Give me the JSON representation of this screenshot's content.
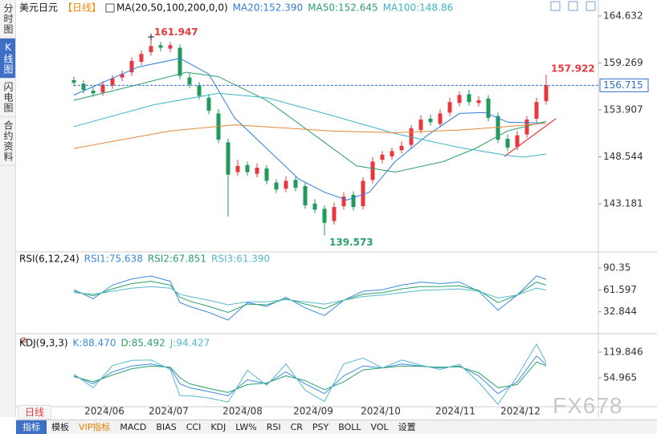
{
  "sidebar": {
    "tabs": [
      "分时图",
      "K线图",
      "闪电图",
      "合约资料"
    ]
  },
  "period_button": "日线",
  "watermark": "FX678",
  "toolbar": {
    "items": [
      "指标",
      "模板",
      "VIP指标",
      "MACD",
      "BIAS",
      "CCI",
      "KDJ",
      "LW%",
      "RSI",
      "CR",
      "PSY",
      "BOLL",
      "VOL",
      "设置"
    ]
  },
  "chart_data": [
    {
      "type": "candlestick",
      "title": "美元日元",
      "period": "【日线】",
      "indicator": "MA(20,50,100,200,0,0)",
      "xlim": [
        -17.5,
        163.25
      ],
      "ylim": [
        137.86,
        165.18
      ],
      "yticks": [
        164.632,
        159.269,
        153.907,
        148.544,
        143.181
      ],
      "xticks": [
        {
          "value": 9.5,
          "label": "2024/06"
        },
        {
          "value": 29.5,
          "label": "2024/07"
        },
        {
          "value": 52.5,
          "label": "2024/08"
        },
        {
          "value": 74.5,
          "label": "2024/09"
        },
        {
          "value": 95.5,
          "label": "2024/10"
        },
        {
          "value": 118.75,
          "label": "2024/11"
        },
        {
          "value": 139,
          "label": "2024/12"
        }
      ],
      "up_color": "#e8383d",
      "down_color": "#1f9a5a",
      "candles": {
        "x": [
          0,
          3,
          6,
          9,
          12,
          15,
          18,
          21,
          24,
          27,
          30,
          33,
          36,
          39,
          42,
          45,
          48,
          51,
          54,
          57,
          60,
          63,
          66,
          69,
          72,
          75,
          78,
          81,
          84,
          87,
          90,
          93,
          96,
          99,
          102,
          105,
          108,
          111,
          114,
          117,
          120,
          123,
          126,
          129,
          132,
          135,
          138,
          141,
          144,
          147
        ],
        "open": [
          157.3,
          156.9,
          156.1,
          155.9,
          156.7,
          157.6,
          158.2,
          159.4,
          160.5,
          161.3,
          160.9,
          161.0,
          157.6,
          156.7,
          155.3,
          153.5,
          150.2,
          146.8,
          147.6,
          146.6,
          147.2,
          145.6,
          144.9,
          145.9,
          145.2,
          143.2,
          142.6,
          141.2,
          142.9,
          144.2,
          142.9,
          145.9,
          148.2,
          148.6,
          149.3,
          149.9,
          151.6,
          152.9,
          152.3,
          153.6,
          154.7,
          155.7,
          154.7,
          155.2,
          153.2,
          150.6,
          149.7,
          151.1,
          152.9,
          154.9
        ],
        "high": [
          157.7,
          157.3,
          156.5,
          157.2,
          157.9,
          158.4,
          159.9,
          160.7,
          161.947,
          161.7,
          161.7,
          161.4,
          158.1,
          157.1,
          155.7,
          154.0,
          150.6,
          148.2,
          148.0,
          147.8,
          147.6,
          146.0,
          146.3,
          146.3,
          145.6,
          143.7,
          143.0,
          143.3,
          144.5,
          144.6,
          146.2,
          148.5,
          149.2,
          149.6,
          150.3,
          152.2,
          153.3,
          153.4,
          154.0,
          155.3,
          156.0,
          156.2,
          155.5,
          155.6,
          153.6,
          151.1,
          151.5,
          153.2,
          155.3,
          157.922
        ],
        "low": [
          156.6,
          155.8,
          155.4,
          155.5,
          156.3,
          157.2,
          157.8,
          159.0,
          160.1,
          160.6,
          160.5,
          157.4,
          156.4,
          155.1,
          153.4,
          150.1,
          141.7,
          146.4,
          146.4,
          146.2,
          145.4,
          144.4,
          144.5,
          144.6,
          142.6,
          142.1,
          139.573,
          140.8,
          142.5,
          142.4,
          142.5,
          145.5,
          147.8,
          148.2,
          148.9,
          149.5,
          151.2,
          152.1,
          151.9,
          153.2,
          154.3,
          154.4,
          154.3,
          152.6,
          150.1,
          149.2,
          149.3,
          150.7,
          152.5,
          154.5
        ],
        "close": [
          157.0,
          156.2,
          155.8,
          156.8,
          157.5,
          158.0,
          159.5,
          160.3,
          161.2,
          161.0,
          161.3,
          157.8,
          156.8,
          155.5,
          153.8,
          150.5,
          146.5,
          147.5,
          146.8,
          147.3,
          145.8,
          144.8,
          145.8,
          145.0,
          143.0,
          142.5,
          141.0,
          142.8,
          144.0,
          142.8,
          145.8,
          148.0,
          148.8,
          149.2,
          149.8,
          151.8,
          152.8,
          152.5,
          153.5,
          154.8,
          155.6,
          154.8,
          155.0,
          153.0,
          150.5,
          149.6,
          151.0,
          152.8,
          154.8,
          156.715
        ]
      },
      "series": [
        {
          "name": "MA20:152.390",
          "color": "#2f7fdc",
          "x": [
            0,
            20,
            33,
            42,
            50,
            60,
            70,
            78,
            85,
            92,
            100,
            110,
            120,
            128,
            135,
            147
          ],
          "values": [
            155.6,
            158.8,
            159.8,
            158.0,
            153.0,
            149.5,
            146.0,
            144.5,
            143.6,
            144.5,
            148.0,
            151.0,
            153.5,
            153.6,
            152.5,
            152.4
          ]
        },
        {
          "name": "MA50:152.645",
          "color": "#2aa06a",
          "x": [
            0,
            20,
            35,
            45,
            60,
            75,
            88,
            100,
            115,
            125,
            135,
            147
          ],
          "values": [
            155.0,
            156.8,
            158.2,
            157.7,
            155.0,
            151.0,
            147.5,
            146.8,
            148.0,
            149.5,
            151.5,
            152.6
          ]
        },
        {
          "name": "MA100:148.86",
          "color": "#3ab4c8",
          "x": [
            0,
            25,
            45,
            60,
            80,
            100,
            120,
            135,
            140,
            147
          ],
          "values": [
            152.0,
            154.5,
            155.8,
            155.3,
            153.3,
            151.2,
            149.6,
            148.7,
            148.5,
            148.86
          ]
        },
        {
          "color": "#e0883a",
          "x": [
            0,
            30,
            50,
            80,
            100,
            120,
            135,
            147
          ],
          "values": [
            149.5,
            151.5,
            152.2,
            151.5,
            151.3,
            151.6,
            152.0,
            152.4
          ]
        }
      ],
      "high_label": {
        "x": 24,
        "value": 161.947,
        "color": "#e8383d"
      },
      "low_label": {
        "x": 78,
        "value": 139.573,
        "color": "#2aa06a"
      },
      "last_label": {
        "x": 147,
        "value": 157.922,
        "color": "#e8383d"
      },
      "last_price": {
        "value": 156.715,
        "color": "#2f6fcc"
      }
    },
    {
      "type": "line",
      "title": "RSI(6,12,24)",
      "xlim": [
        -17.5,
        163.25
      ],
      "ylim": [
        6.2,
        109.5
      ],
      "yticks": [
        90.35,
        61.597,
        32.844
      ],
      "x": [
        0,
        6,
        12,
        18,
        24,
        30,
        33,
        36,
        42,
        48,
        54,
        60,
        66,
        72,
        78,
        84,
        90,
        96,
        102,
        108,
        114,
        120,
        126,
        132,
        138,
        144,
        147
      ],
      "series": [
        {
          "name": "RSI1:75.638",
          "color": "#3d8be0",
          "values": [
            62,
            50,
            68,
            76,
            80,
            73,
            45,
            40,
            32,
            22,
            45,
            40,
            52,
            38,
            28,
            48,
            60,
            62,
            68,
            72,
            70,
            72,
            60,
            35,
            55,
            80,
            75.638
          ]
        },
        {
          "name": "RSI2:67.851",
          "color": "#2aa06a",
          "values": [
            60,
            54,
            63,
            70,
            73,
            68,
            52,
            47,
            40,
            32,
            43,
            42,
            50,
            43,
            37,
            48,
            56,
            58,
            63,
            66,
            66,
            67,
            61,
            45,
            55,
            72,
            67.851
          ]
        },
        {
          "name": "RSI3:61.390",
          "color": "#56b8cf",
          "values": [
            58,
            56,
            60,
            64,
            66,
            64,
            56,
            53,
            48,
            42,
            46,
            46,
            49,
            46,
            43,
            48,
            53,
            55,
            58,
            61,
            62,
            63,
            60,
            51,
            55,
            64,
            61.39
          ]
        }
      ]
    },
    {
      "type": "line",
      "title": "KDJ(9,3,3)",
      "xlim": [
        -17.5,
        163.25
      ],
      "ylim": [
        -14,
        162.4
      ],
      "yticks": [
        119.846,
        54.965
      ],
      "x": [
        0,
        6,
        12,
        18,
        24,
        30,
        33,
        36,
        42,
        48,
        54,
        60,
        66,
        72,
        78,
        84,
        90,
        96,
        102,
        108,
        114,
        120,
        126,
        132,
        138,
        144,
        147
      ],
      "series": [
        {
          "name": "K:88.470",
          "color": "#3d8be0",
          "values": [
            60,
            40,
            70,
            85,
            90,
            80,
            40,
            30,
            20,
            10,
            50,
            40,
            70,
            40,
            15,
            60,
            85,
            80,
            90,
            85,
            80,
            85,
            60,
            15,
            45,
            110,
            88.47
          ]
        },
        {
          "name": "D:85.492",
          "color": "#2aa06a",
          "values": [
            58,
            45,
            62,
            78,
            85,
            82,
            55,
            40,
            28,
            18,
            38,
            42,
            60,
            48,
            25,
            45,
            75,
            80,
            85,
            84,
            82,
            83,
            68,
            30,
            38,
            95,
            85.492
          ]
        },
        {
          "name": "J:94.427",
          "color": "#56b8cf",
          "values": [
            64,
            30,
            86,
            99,
            100,
            76,
            10,
            10,
            4,
            -6,
            74,
            36,
            90,
            24,
            -5,
            90,
            105,
            80,
            100,
            87,
            76,
            89,
            44,
            -12,
            59,
            140,
            94.427
          ]
        }
      ]
    }
  ]
}
